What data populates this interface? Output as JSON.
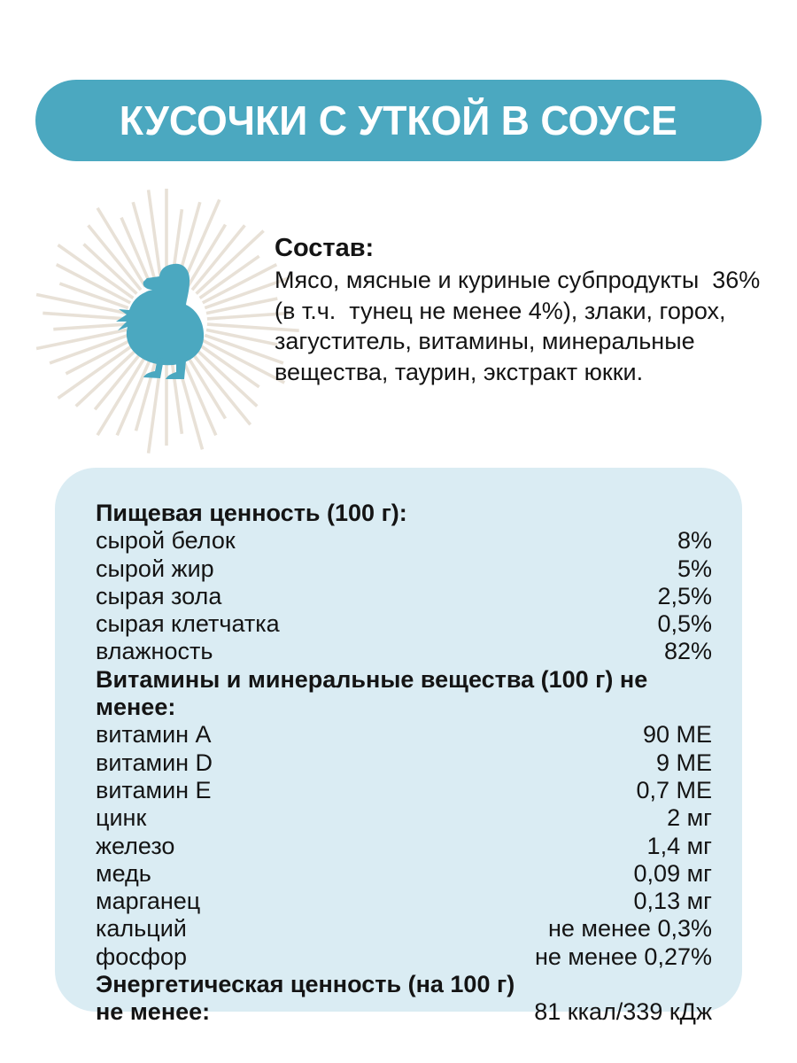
{
  "banner": {
    "title": "КУСОЧКИ С УТКОЙ В СОУСЕ",
    "bg_color": "#4BA8C0",
    "text_color": "#FFFFFF"
  },
  "composition": {
    "heading": "Состав:",
    "line1": "Мясо, мясные и куриные субпродукты  36%",
    "line2": "(в т.ч.  тунец не менее 4%), злаки, горох,",
    "line3": "загуститель, витамины, минеральные",
    "line4": "вещества, таурин, экстракт юкки.",
    "duck_icon_color": "#4BA8C0",
    "rays_color": "#E8E1D7"
  },
  "nutrition": {
    "panel_color": "#DAECF3",
    "section1": {
      "heading": "Пищевая ценность (100 г):",
      "rows": [
        {
          "label": "сырой белок",
          "value": "8%"
        },
        {
          "label": "сырой жир",
          "value": "5%"
        },
        {
          "label": "сырая зола",
          "value": "2,5%"
        },
        {
          "label": "сырая клетчатка",
          "value": "0,5%"
        },
        {
          "label": "влажность",
          "value": "82%"
        }
      ]
    },
    "section2": {
      "heading": "Витамины и минеральные вещества (100 г) не менее:",
      "rows": [
        {
          "label": "витамин А",
          "value": "90 МЕ"
        },
        {
          "label": "витамин D",
          "value": "9 МЕ"
        },
        {
          "label": "витамин Е",
          "value": "0,7 МЕ"
        },
        {
          "label": "цинк",
          "value": "2 мг"
        },
        {
          "label": "железо",
          "value": "1,4 мг"
        },
        {
          "label": "медь",
          "value": "0,09 мг"
        },
        {
          "label": "марганец",
          "value": "0,13 мг"
        },
        {
          "label": "кальций",
          "value": "не менее 0,3%"
        },
        {
          "label": "фосфор",
          "value": "не менее 0,27%"
        }
      ]
    },
    "section3": {
      "heading": "Энергетическая ценность (на 100 г)",
      "heading_line2": "не менее:",
      "value": "81 ккал/339 кДж"
    }
  }
}
